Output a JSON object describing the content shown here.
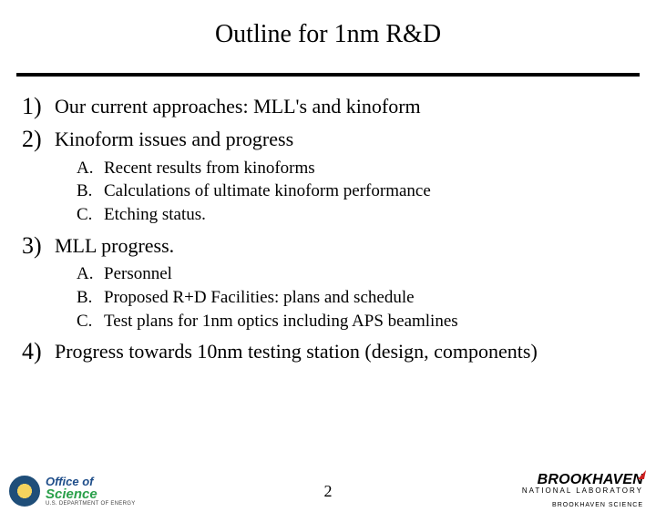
{
  "title": "Outline for 1nm R&D",
  "items": [
    {
      "marker": "1)",
      "text": "Our current approaches: MLL's and kinoform"
    },
    {
      "marker": "2)",
      "text": "Kinoform issues and progress"
    }
  ],
  "sub2": [
    {
      "marker": "A.",
      "text": "Recent results from kinoforms"
    },
    {
      "marker": "B.",
      "text": "Calculations of ultimate kinoform performance"
    },
    {
      "marker": "C.",
      "text": "Etching status."
    }
  ],
  "item3": {
    "marker": "3)",
    "text": "MLL progress."
  },
  "sub3": [
    {
      "marker": "A.",
      "text": "Personnel"
    },
    {
      "marker": "B.",
      "text": "Proposed R+D Facilities:  plans and schedule"
    },
    {
      "marker": "C.",
      "text": "Test plans for 1nm optics including APS beamlines"
    }
  ],
  "item4": {
    "marker": "4)",
    "text": "Progress towards 10nm testing station (design, components)"
  },
  "pageNumber": "2",
  "logoLeft": {
    "line1": "Office of",
    "line2": "Science",
    "line3": "U.S. DEPARTMENT OF ENERGY"
  },
  "logoRight": {
    "main": "BROOKHAVEN",
    "sub": "NATIONAL LABORATORY",
    "tag": "BROOKHAVEN SCIENCE"
  }
}
